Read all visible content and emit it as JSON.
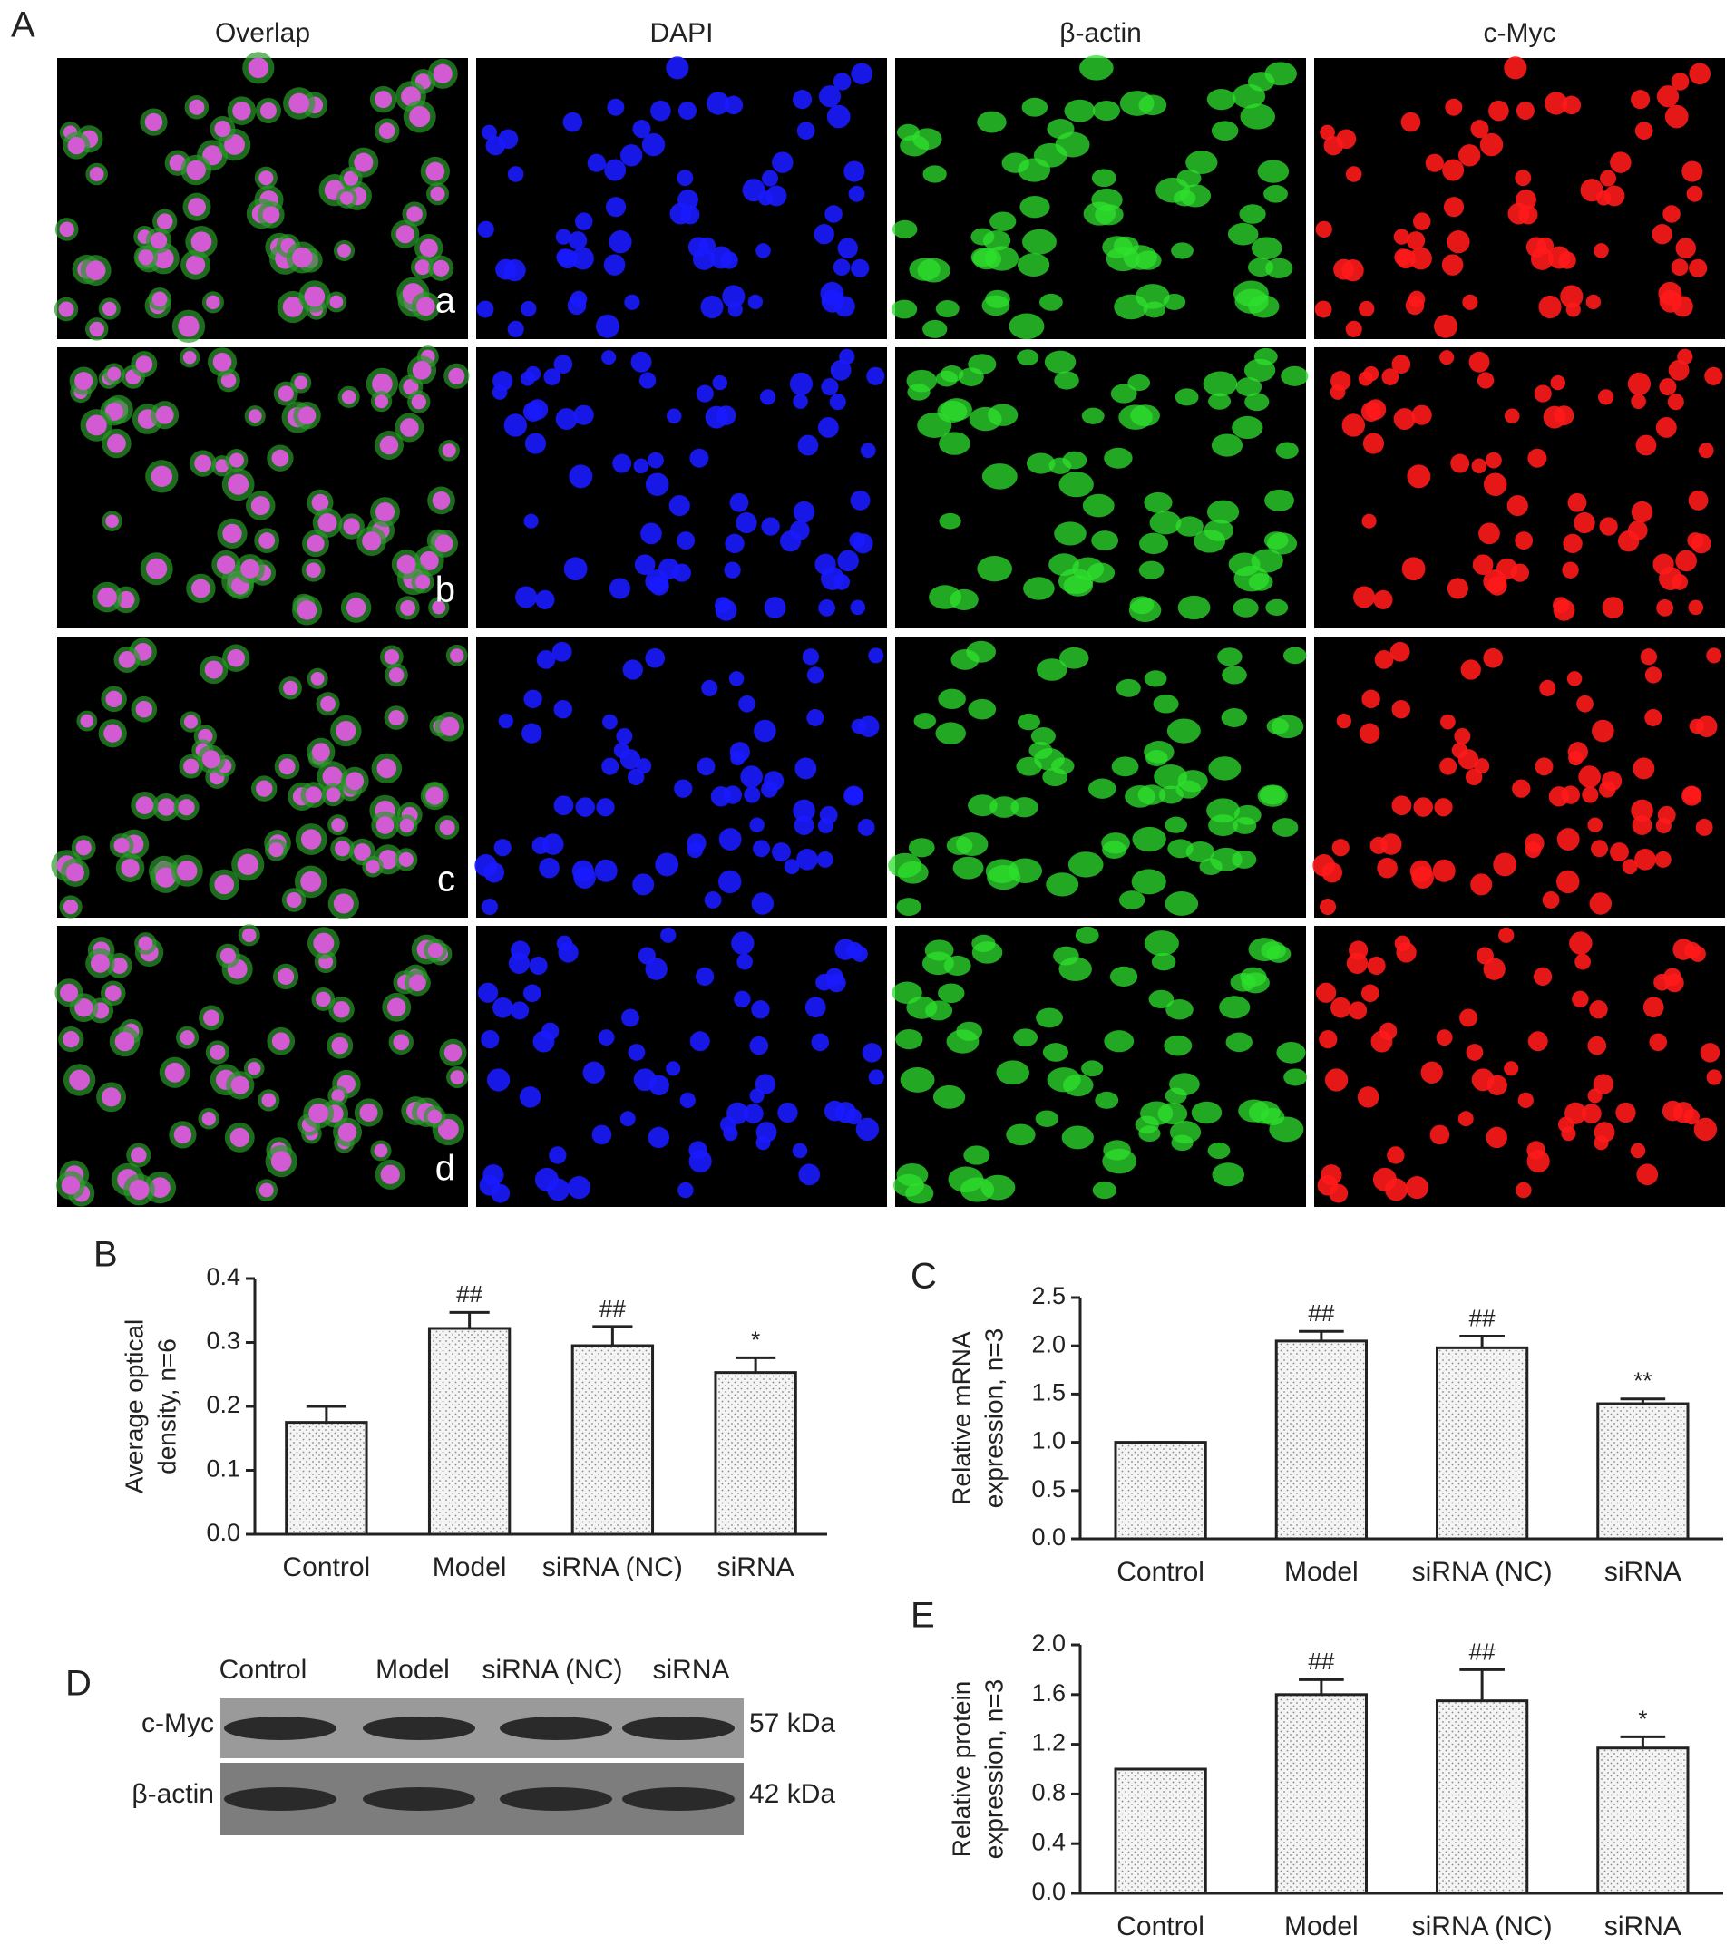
{
  "panel_a": {
    "label": "A",
    "columns": [
      "Overlap",
      "DAPI",
      "β-actin",
      "c-Myc"
    ],
    "rows": [
      "a",
      "b",
      "c",
      "d"
    ]
  },
  "panel_d": {
    "label": "D",
    "lanes": [
      "Control",
      "Model",
      "siRNA (NC)",
      "siRNA"
    ],
    "bands": [
      {
        "protein": "c-Myc",
        "size": "57 kDa"
      },
      {
        "protein": "β-actin",
        "size": "42 kDa"
      }
    ]
  },
  "chart_data": [
    {
      "type": "bar",
      "panel": "B",
      "ylabel": [
        "Average optical",
        "density, n=6"
      ],
      "categories": [
        "Control",
        "Model",
        "siRNA (NC)",
        "siRNA"
      ],
      "values": [
        0.175,
        0.322,
        0.295,
        0.253
      ],
      "errors": [
        0.025,
        0.025,
        0.03,
        0.023
      ],
      "annotations": [
        null,
        "##",
        "##",
        "*"
      ],
      "ylim": [
        0,
        0.4
      ],
      "yticks": [
        {
          "value": 0,
          "label": "0.0"
        },
        0.1,
        0.2,
        0.3,
        0.4
      ]
    },
    {
      "type": "bar",
      "panel": "C",
      "ylabel": [
        "Relative mRNA",
        "expression, n=3"
      ],
      "categories": [
        "Control",
        "Model",
        "siRNA (NC)",
        "siRNA"
      ],
      "values": [
        1.0,
        2.05,
        1.98,
        1.4
      ],
      "errors": [
        0,
        0.1,
        0.12,
        0.05
      ],
      "annotations": [
        null,
        "##",
        "##",
        "**"
      ],
      "ylim": [
        0,
        2.5
      ],
      "yticks": [
        {
          "value": 0,
          "label": "0.0"
        },
        0.5,
        {
          "value": 1,
          "label": "1.0"
        },
        1.5,
        {
          "value": 2,
          "label": "2.0"
        },
        2.5
      ]
    },
    {
      "type": "bar",
      "panel": "E",
      "ylabel": [
        "Relative protein",
        "expression, n=3"
      ],
      "categories": [
        "Control",
        "Model",
        "siRNA (NC)",
        "siRNA"
      ],
      "values": [
        1.0,
        1.6,
        1.55,
        1.17
      ],
      "errors": [
        0,
        0.12,
        0.25,
        0.09
      ],
      "annotations": [
        null,
        "##",
        "##",
        "*"
      ],
      "ylim": [
        0,
        2.0
      ],
      "yticks": [
        {
          "value": 0,
          "label": "0.0"
        },
        0.4,
        0.8,
        1.2,
        1.6,
        {
          "value": 2,
          "label": "2.0"
        }
      ]
    }
  ]
}
